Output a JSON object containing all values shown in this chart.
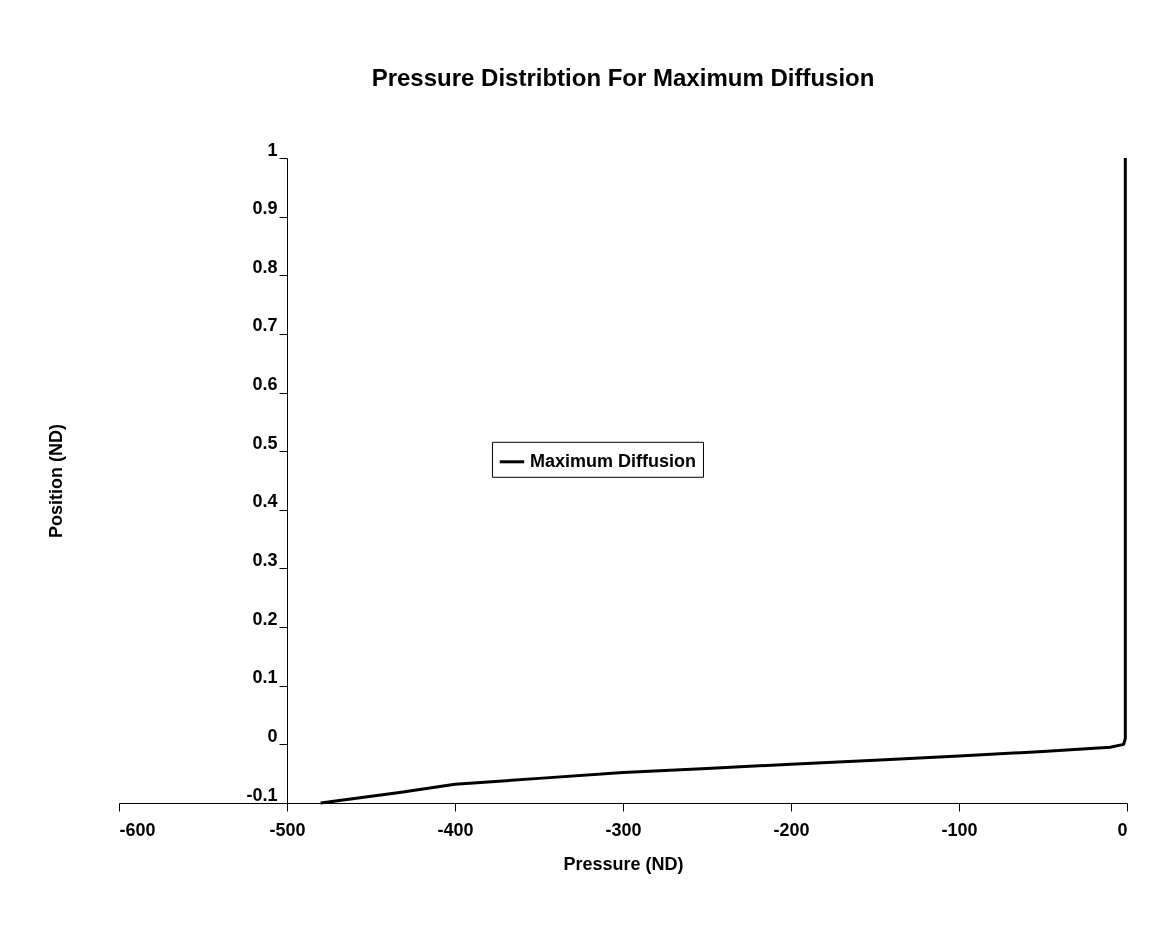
{
  "chart_data": {
    "type": "line",
    "title": "Pressure Distribtion For Maximum Diffusion",
    "xlabel": "Pressure (ND)",
    "ylabel": "Position (ND)",
    "xlim": [
      -600,
      0
    ],
    "xticks": [
      -600,
      -500,
      -400,
      -300,
      -200,
      -100,
      0
    ],
    "ylim": [
      -0.1,
      1
    ],
    "yticks": [
      -0.1,
      0,
      0.1,
      0.2,
      0.3,
      0.4,
      0.5,
      0.6,
      0.7,
      0.8,
      0.9,
      1
    ],
    "grid": false,
    "legend": "center",
    "series": [
      {
        "name": "Maximum Diffusion",
        "color": "#000000",
        "x": [
          -480,
          -433,
          -400,
          -350,
          -300,
          -250,
          -200,
          -150,
          -100,
          -50,
          -10,
          -2,
          -1,
          -1
        ],
        "values": [
          -0.1,
          -0.082,
          -0.068,
          -0.058,
          -0.048,
          -0.041,
          -0.034,
          -0.027,
          -0.02,
          -0.012,
          -0.005,
          0,
          0.01,
          1
        ]
      }
    ]
  }
}
